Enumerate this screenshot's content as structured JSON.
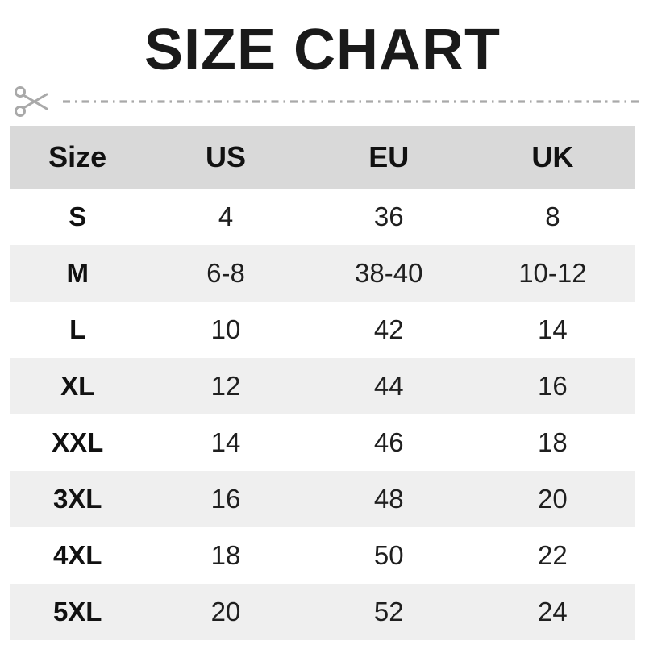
{
  "title": "SIZE CHART",
  "cut_line": {
    "icon": "scissors-icon",
    "style": "dash-dot"
  },
  "table": {
    "headers": [
      "Size",
      "US",
      "EU",
      "UK"
    ],
    "rows": [
      [
        "S",
        "4",
        "36",
        "8"
      ],
      [
        "M",
        "6-8",
        "38-40",
        "10-12"
      ],
      [
        "L",
        "10",
        "42",
        "14"
      ],
      [
        "XL",
        "12",
        "44",
        "16"
      ],
      [
        "XXL",
        "14",
        "46",
        "18"
      ],
      [
        "3XL",
        "16",
        "48",
        "20"
      ],
      [
        "4XL",
        "18",
        "50",
        "22"
      ],
      [
        "5XL",
        "20",
        "52",
        "24"
      ]
    ]
  },
  "colors": {
    "header_bg": "#d9d9d9",
    "alt_row_bg": "#efefef",
    "row_bg": "#ffffff",
    "text": "#1c1c1c",
    "cut_line_gray": "#a9a9a9"
  }
}
